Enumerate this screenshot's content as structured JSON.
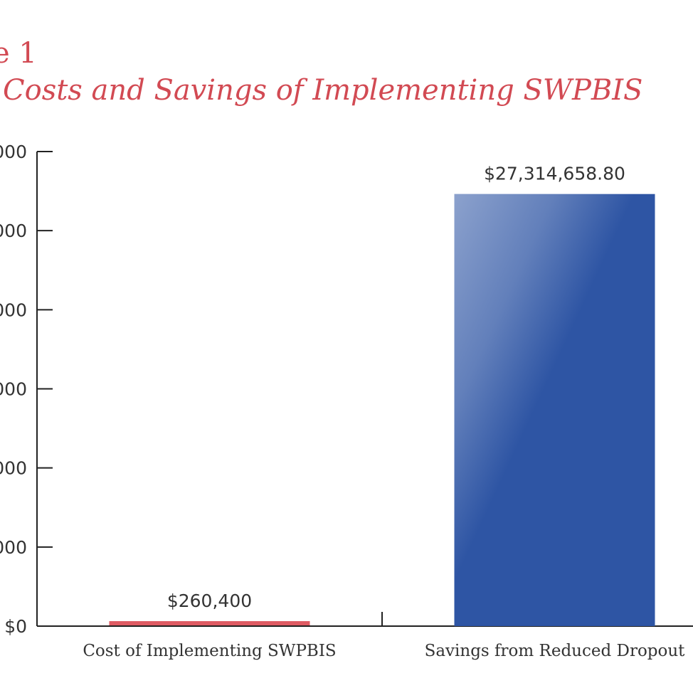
{
  "figure_label": "e 1",
  "chart_data": {
    "type": "bar",
    "title": "Costs and Savings of Implementing SWPBIS",
    "xlabel": "",
    "ylabel": "",
    "ylim": [
      0,
      30000000
    ],
    "y_ticks": [
      0,
      5000000,
      10000000,
      15000000,
      20000000,
      25000000,
      30000000
    ],
    "y_tick_labels": [
      "$0",
      "000",
      "000",
      "000",
      "000",
      "000",
      "000"
    ],
    "categories": [
      "Cost of Implementing SWPBIS",
      "Savings from Reduced Dropout"
    ],
    "values": [
      260400,
      27314658.8
    ],
    "data_labels": [
      "$260,400",
      "$27,314,658.80"
    ],
    "colors": [
      "#df5b63",
      "#2e55a4"
    ],
    "grid": false,
    "legend": "none"
  }
}
